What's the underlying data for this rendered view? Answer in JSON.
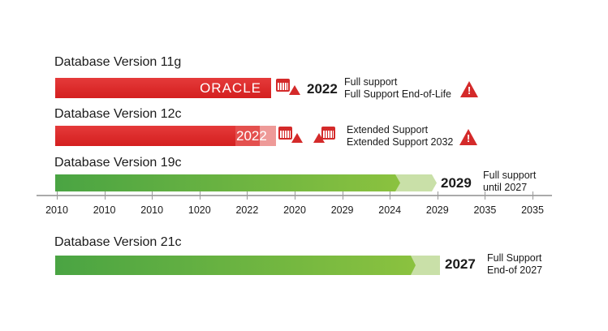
{
  "versions": [
    {
      "title": "Database Version 11g",
      "bar_label": "ORACLE",
      "year": "2022",
      "note1": "Full support",
      "note2": "Full Support End-of-Life"
    },
    {
      "title": "Database Version 12c",
      "bar_label": "2022",
      "note1": "Extended Support",
      "note2": "Extended Support 2032"
    },
    {
      "title": "Database Version 19c",
      "year": "2029",
      "note1": "Full support",
      "note2": "until 2027"
    },
    {
      "title": "Database Version 21c",
      "year": "2027",
      "note1": "Full Support",
      "note2": "End-of 2027"
    }
  ],
  "axis": {
    "labels": [
      "2010",
      "2010",
      "2010",
      "1020",
      "2022",
      "2020",
      "2029",
      "2024",
      "2029",
      "2035",
      "2035"
    ]
  },
  "colors": {
    "red": "#d42a2a",
    "green": "#6ab440",
    "light_green": "#c9e0a8"
  }
}
